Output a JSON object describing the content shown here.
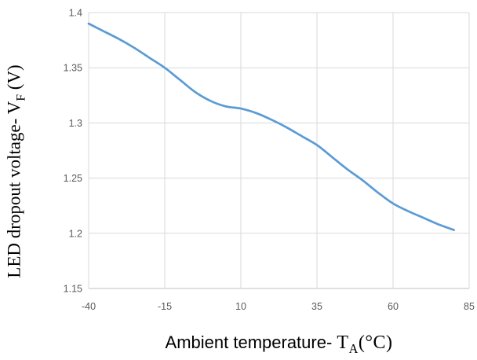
{
  "chart_data": {
    "type": "line",
    "title": "",
    "xlabel": "Ambient temperature- TA(°C)",
    "ylabel": "LED dropout voltage- VF (V)",
    "xlabel_parts": {
      "prefix": "Ambient temperature- ",
      "t": "T",
      "sub": "A",
      "suffix": "(°C)"
    },
    "ylabel_parts": {
      "prefix": "LED dropout voltage- V",
      "sub": "F",
      "suffix": " (V)"
    },
    "xlim": [
      -40,
      85
    ],
    "ylim": [
      1.15,
      1.4
    ],
    "x_ticks": [
      -40,
      -15,
      10,
      35,
      60,
      85
    ],
    "x_tick_labels": [
      "-40",
      "-15",
      "10",
      "35",
      "60",
      "85"
    ],
    "y_ticks": [
      1.15,
      1.2,
      1.25,
      1.3,
      1.35,
      1.4
    ],
    "y_tick_labels": [
      "1.15",
      "1.2",
      "1.25",
      "1.3",
      "1.35",
      "1.4"
    ],
    "grid": true,
    "legend": false,
    "series": [
      {
        "x": [
          -40,
          -35,
          -30,
          -25,
          -20,
          -15,
          -10,
          -5,
          0,
          5,
          10,
          15,
          20,
          25,
          30,
          35,
          40,
          45,
          50,
          55,
          60,
          65,
          70,
          75,
          80
        ],
        "y": [
          1.39,
          1.383,
          1.376,
          1.368,
          1.359,
          1.35,
          1.339,
          1.328,
          1.32,
          1.315,
          1.313,
          1.309,
          1.303,
          1.296,
          1.288,
          1.28,
          1.269,
          1.258,
          1.248,
          1.237,
          1.227,
          1.22,
          1.214,
          1.208,
          1.203
        ]
      }
    ],
    "colors": {
      "line": "#5B9BD5",
      "grid": "#D9D9D9",
      "axis": "#BFBFBF",
      "tick_text": "#595959",
      "title_text": "#000000"
    }
  }
}
